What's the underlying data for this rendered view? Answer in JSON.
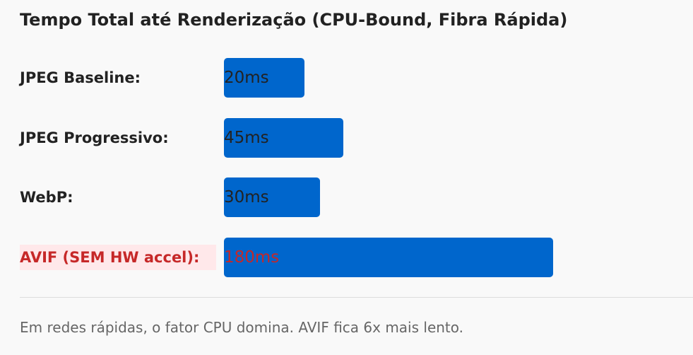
{
  "chart_data": {
    "type": "bar",
    "orientation": "horizontal",
    "title": "Tempo Total até Renderização (CPU-Bound, Fibra Rápida)",
    "categories": [
      "JPEG Baseline:",
      "JPEG Progressivo:",
      "WebP:",
      "AVIF (SEM HW accel):"
    ],
    "values": [
      20,
      45,
      30,
      180
    ],
    "value_labels": [
      "20ms",
      "45ms",
      "30ms",
      "180ms"
    ],
    "unit": "ms",
    "highlighted": "AVIF (SEM HW accel):",
    "colors": {
      "bar": "#0066cc",
      "highlight_text": "#c62828",
      "highlight_bg": "#ffe8ea"
    }
  },
  "note": "Em redes rápidas, o fator CPU domina. AVIF fica 6x mais lento."
}
